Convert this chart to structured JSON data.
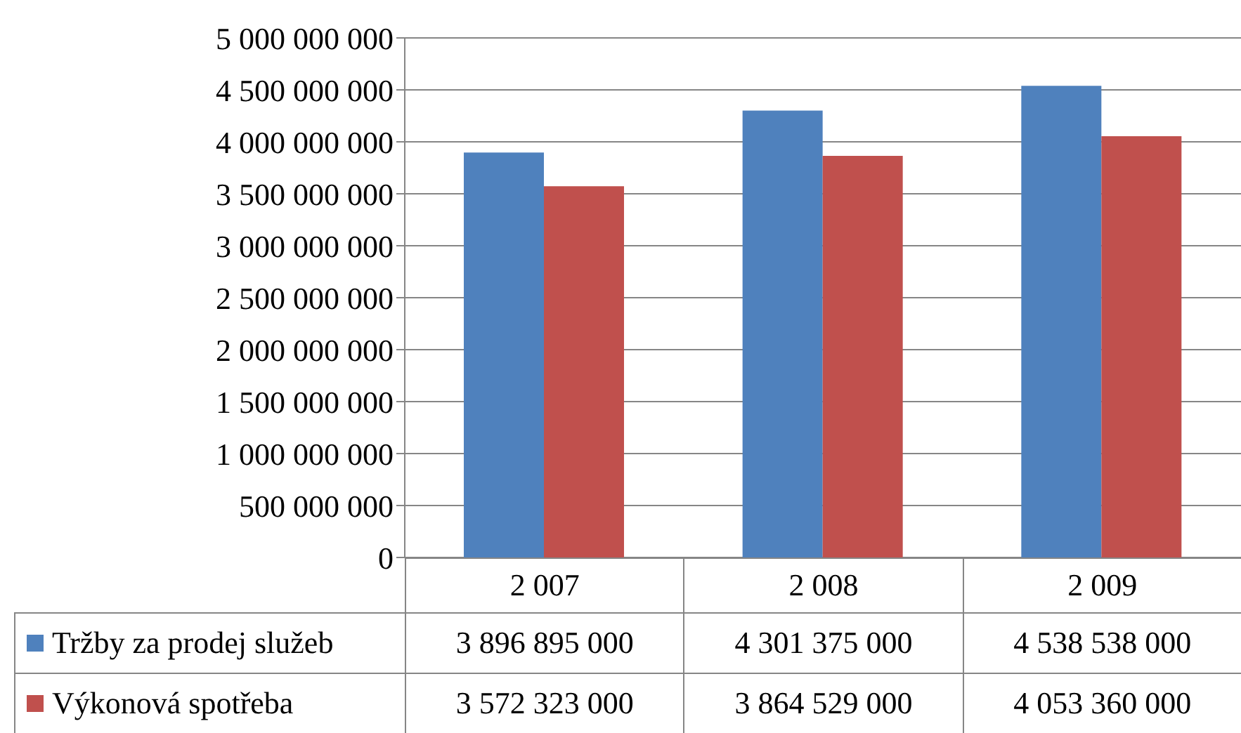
{
  "chart_data": {
    "type": "bar",
    "categories": [
      "2 007",
      "2 008",
      "2 009"
    ],
    "series": [
      {
        "name": "Tržby za prodej služeb",
        "color": "#4f81bd",
        "values": [
          3896895000,
          4301375000,
          4538538000
        ],
        "value_labels": [
          "3 896 895 000",
          "4 301 375 000",
          "4 538 538 000"
        ]
      },
      {
        "name": "Výkonová spotřeba",
        "color": "#c0504d",
        "values": [
          3572323000,
          3864529000,
          4053360000
        ],
        "value_labels": [
          "3 572 323 000",
          "3 864 529 000",
          "4 053 360 000"
        ]
      }
    ],
    "ylim": [
      0,
      5000000000
    ],
    "yticks": [
      0,
      {
        "value": 500000000,
        "label": "500 000 000"
      },
      {
        "value": 1000000000,
        "label": "1 000 000 000"
      },
      {
        "value": 1500000000,
        "label": "1 500 000 000"
      },
      {
        "value": 2000000000,
        "label": "2 000 000 000"
      },
      {
        "value": 2500000000,
        "label": "2 500 000 000"
      },
      {
        "value": 3000000000,
        "label": "3 000 000 000"
      },
      {
        "value": 3500000000,
        "label": "3 500 000 000"
      },
      {
        "value": 4000000000,
        "label": "4 000 000 000"
      },
      {
        "value": 4500000000,
        "label": "4 500 000 000"
      },
      {
        "value": 5000000000,
        "label": "5 000 000 000"
      }
    ],
    "grid": "y",
    "legend": "bottom left"
  }
}
